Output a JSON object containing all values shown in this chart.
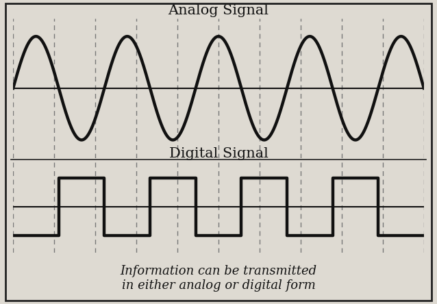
{
  "title_analog": "Analog Signal",
  "title_digital": "Digital Signal",
  "caption": "Information can be transmitted\nin either analog or digital form",
  "bg_color": "#dedad2",
  "signal_color": "#111111",
  "line_color": "#111111",
  "dashed_color": "#777777",
  "border_color": "#222222",
  "analog_amplitude": 1.0,
  "analog_frequency": 4.5,
  "num_dashes": 11,
  "signal_linewidth": 3.2,
  "axis_linewidth": 1.5,
  "title_fontsize": 15,
  "caption_fontsize": 13,
  "dashed_lw": 1.0
}
